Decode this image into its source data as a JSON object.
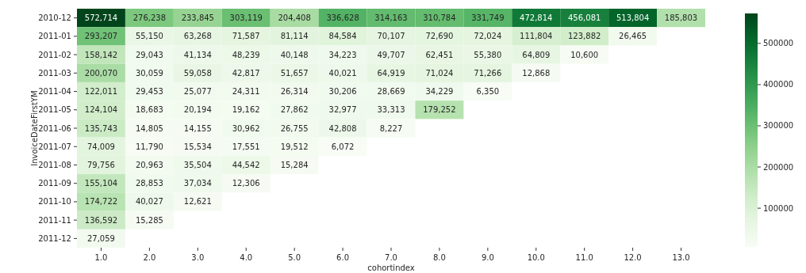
{
  "chart_data": {
    "type": "heatmap",
    "xlabel": "cohortindex",
    "ylabel": "InvoiceDateFirstYM",
    "categories": [
      "1.0",
      "2.0",
      "3.0",
      "4.0",
      "5.0",
      "6.0",
      "7.0",
      "8.0",
      "9.0",
      "10.0",
      "11.0",
      "12.0",
      "13.0"
    ],
    "y_categories": [
      "2010-12",
      "2011-01",
      "2011-02",
      "2011-03",
      "2011-04",
      "2011-05",
      "2011-06",
      "2011-07",
      "2011-08",
      "2011-09",
      "2011-10",
      "2011-11",
      "2011-12"
    ],
    "cells": [
      [
        572714,
        276238,
        233845,
        303119,
        204408,
        336628,
        314163,
        310784,
        331749,
        472814,
        456081,
        513804,
        185803
      ],
      [
        293207,
        55150,
        63268,
        71587,
        81114,
        84584,
        70107,
        72690,
        72024,
        111804,
        123882,
        26465,
        null
      ],
      [
        158142,
        29043,
        41134,
        48239,
        40148,
        34223,
        49707,
        62451,
        55380,
        64809,
        10600,
        null,
        null
      ],
      [
        200070,
        30059,
        59058,
        42817,
        51657,
        40021,
        64919,
        71024,
        71266,
        12868,
        null,
        null,
        null
      ],
      [
        122011,
        29453,
        25077,
        24311,
        26314,
        30206,
        28669,
        34229,
        6350,
        null,
        null,
        null,
        null
      ],
      [
        124104,
        18683,
        20194,
        19162,
        27862,
        32977,
        33313,
        179252,
        null,
        null,
        null,
        null,
        null
      ],
      [
        135743,
        14805,
        14155,
        30962,
        26755,
        42808,
        8227,
        null,
        null,
        null,
        null,
        null,
        null
      ],
      [
        74009,
        11790,
        15534,
        17551,
        19512,
        6072,
        null,
        null,
        null,
        null,
        null,
        null,
        null
      ],
      [
        79756,
        20963,
        35504,
        44542,
        15284,
        null,
        null,
        null,
        null,
        null,
        null,
        null,
        null
      ],
      [
        155104,
        28853,
        37034,
        12306,
        null,
        null,
        null,
        null,
        null,
        null,
        null,
        null,
        null
      ],
      [
        174722,
        40027,
        12621,
        null,
        null,
        null,
        null,
        null,
        null,
        null,
        null,
        null,
        null
      ],
      [
        136592,
        15285,
        null,
        null,
        null,
        null,
        null,
        null,
        null,
        null,
        null,
        null,
        null
      ],
      [
        27059,
        null,
        null,
        null,
        null,
        null,
        null,
        null,
        null,
        null,
        null,
        null,
        null
      ]
    ],
    "cell_labels": [
      [
        "572,714",
        "276,238",
        "233,845",
        "303,119",
        "204,408",
        "336,628",
        "314,163",
        "310,784",
        "331,749",
        "472,814",
        "456,081",
        "513,804",
        "185,803"
      ],
      [
        "293,207",
        "55,150",
        "63,268",
        "71,587",
        "81,114",
        "84,584",
        "70,107",
        "72,690",
        "72,024",
        "111,804",
        "123,882",
        "26,465",
        null
      ],
      [
        "158,142",
        "29,043",
        "41,134",
        "48,239",
        "40,148",
        "34,223",
        "49,707",
        "62,451",
        "55,380",
        "64,809",
        "10,600",
        null,
        null
      ],
      [
        "200,070",
        "30,059",
        "59,058",
        "42,817",
        "51,657",
        "40,021",
        "64,919",
        "71,024",
        "71,266",
        "12,868",
        null,
        null,
        null
      ],
      [
        "122,011",
        "29,453",
        "25,077",
        "24,311",
        "26,314",
        "30,206",
        "28,669",
        "34,229",
        "6,350",
        null,
        null,
        null,
        null
      ],
      [
        "124,104",
        "18,683",
        "20,194",
        "19,162",
        "27,862",
        "32,977",
        "33,313",
        "179,252",
        null,
        null,
        null,
        null,
        null
      ],
      [
        "135,743",
        "14,805",
        "14,155",
        "30,962",
        "26,755",
        "42,808",
        "8,227",
        null,
        null,
        null,
        null,
        null,
        null
      ],
      [
        "74,009",
        "11,790",
        "15,534",
        "17,551",
        "19,512",
        "6,072",
        null,
        null,
        null,
        null,
        null,
        null,
        null
      ],
      [
        "79,756",
        "20,963",
        "35,504",
        "44,542",
        "15,284",
        null,
        null,
        null,
        null,
        null,
        null,
        null,
        null
      ],
      [
        "155,104",
        "28,853",
        "37,034",
        "12,306",
        null,
        null,
        null,
        null,
        null,
        null,
        null,
        null,
        null
      ],
      [
        "174,722",
        "40,027",
        "12,621",
        null,
        null,
        null,
        null,
        null,
        null,
        null,
        null,
        null,
        null
      ],
      [
        "136,592",
        "15,285",
        null,
        null,
        null,
        null,
        null,
        null,
        null,
        null,
        null,
        null,
        null
      ],
      [
        "27,059",
        null,
        null,
        null,
        null,
        null,
        null,
        null,
        null,
        null,
        null,
        null,
        null
      ]
    ],
    "clim": [
      6072,
      572714
    ],
    "cticks": [
      100000,
      200000,
      300000,
      400000,
      500000
    ]
  }
}
